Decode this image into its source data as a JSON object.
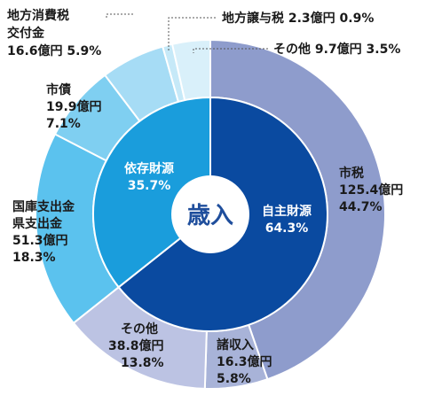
{
  "chart_data": {
    "type": "pie",
    "title": "",
    "center_label": "歳入",
    "inner_ring": [
      {
        "name": "自主財源",
        "percent": 64.3,
        "color": "#0a4aa0"
      },
      {
        "name": "依存財源",
        "percent": 35.7,
        "color": "#1a9ddc"
      }
    ],
    "outer_ring": [
      {
        "name": "市税",
        "amount": "125.4億円",
        "percent": 44.7,
        "group": "自主財源",
        "color": "#8e9ccc"
      },
      {
        "name": "諸収入",
        "amount": "16.3億円",
        "percent": 5.8,
        "group": "自主財源",
        "color": "#a8b3d8"
      },
      {
        "name": "その他",
        "amount": "38.8億円",
        "percent": 13.8,
        "group": "自主財源",
        "color": "#bcc3e3"
      },
      {
        "name": "国庫支出金 県支出金",
        "amount": "51.3億円",
        "percent": 18.3,
        "group": "依存財源",
        "color": "#5bc2ee"
      },
      {
        "name": "市債",
        "amount": "19.9億円",
        "percent": 7.1,
        "group": "依存財源",
        "color": "#7fcff1"
      },
      {
        "name": "地方消費税 交付金",
        "amount": "16.6億円",
        "percent": 5.9,
        "group": "依存財源",
        "color": "#a6dcf5"
      },
      {
        "name": "地方譲与税",
        "amount": "2.3億円",
        "percent": 0.9,
        "group": "依存財源",
        "color": "#c6e9f8"
      },
      {
        "name": "その他",
        "amount": "9.7億円",
        "percent": 3.5,
        "group": "依存財源",
        "color": "#d9f0fa"
      }
    ],
    "labels": {
      "inner_0_name": "自主財源",
      "inner_0_pct": "64.3%",
      "inner_1_name": "依存財源",
      "inner_1_pct": "35.7%",
      "o0_l1": "市税",
      "o0_l2": "125.4億円",
      "o0_l3": "44.7%",
      "o1_l1": "諸収入",
      "o1_l2": "16.3億円",
      "o1_l3": "5.8%",
      "o2_l1": "その他",
      "o2_l2": "38.8億円",
      "o2_l3": "13.8%",
      "o3_l1": "国庫支出金",
      "o3_l2": "県支出金",
      "o3_l3": "51.3億円",
      "o3_l4": "18.3%",
      "o4_l1": "市債",
      "o4_l2": "19.9億円",
      "o4_l3": "7.1%",
      "o5_l1": "地方消費税",
      "o5_l2": "交付金",
      "o5_l3": "16.6億円 5.9%",
      "o6_l1": "地方譲与税 2.3億円 0.9%",
      "o7_l1": "その他 9.7億円 3.5%"
    }
  }
}
